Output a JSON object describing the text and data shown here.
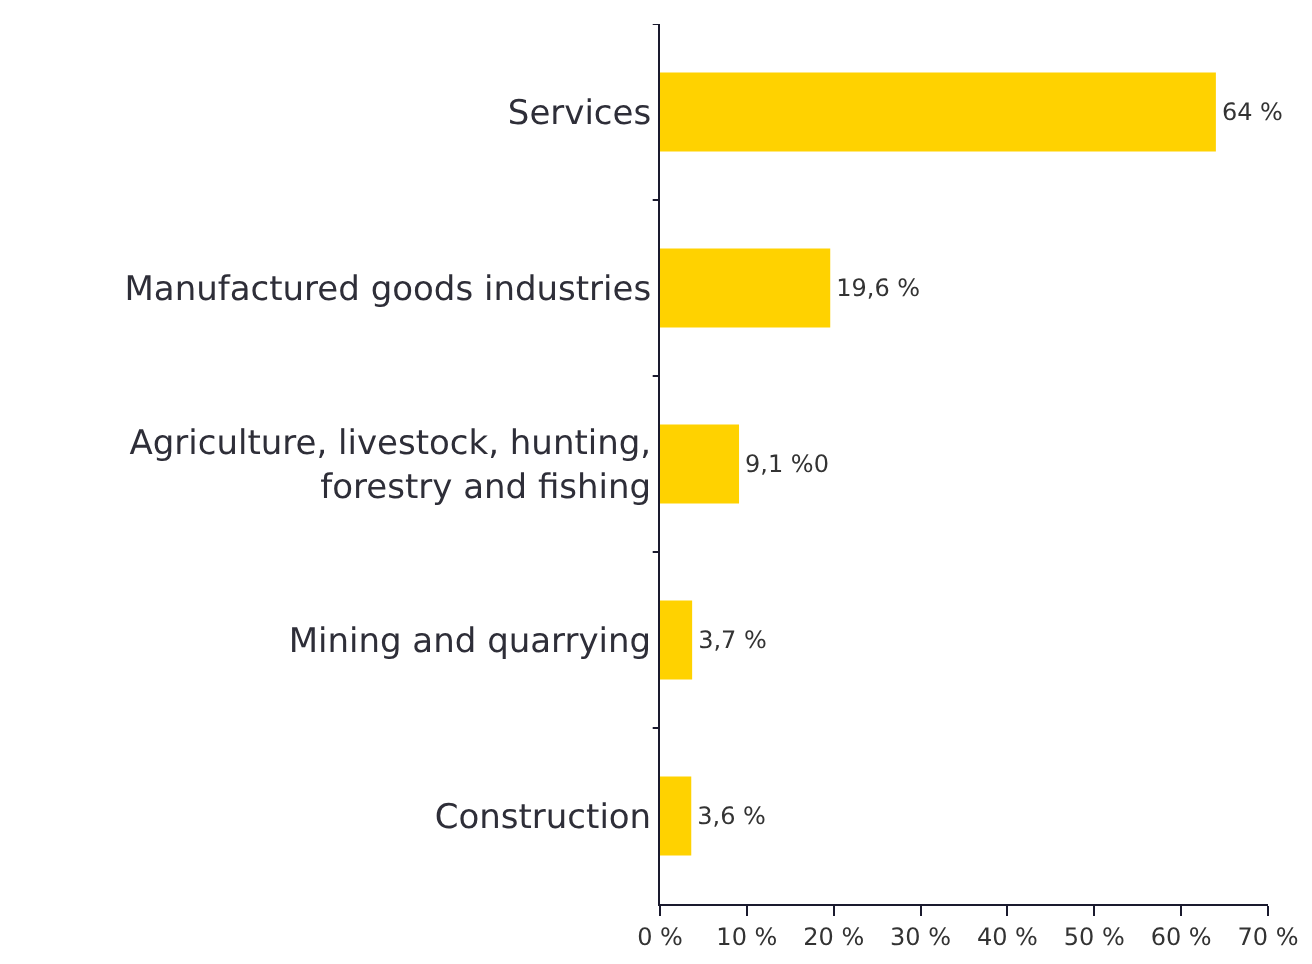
{
  "chart_data": {
    "type": "bar",
    "orientation": "horizontal",
    "categories": [
      "Services",
      "Manufactured goods industries",
      "Agriculture, livestock, hunting,\nforestry and fishing",
      "Mining and quarrying",
      "Construction"
    ],
    "values": [
      64,
      19.6,
      9.1,
      3.7,
      3.6
    ],
    "value_labels": [
      "64 %",
      "19,6 %",
      "9,1 %0",
      "3,7 %",
      "3,6 %"
    ],
    "color": "#ffd200",
    "xlim": [
      0,
      70
    ],
    "xticks": [
      {
        "value": 0,
        "label": "0 %"
      },
      {
        "value": 10,
        "label": "10 %"
      },
      {
        "value": 20,
        "label": "20 %"
      },
      {
        "value": 30,
        "label": "30 %"
      },
      {
        "value": 40,
        "label": "40 %"
      },
      {
        "value": 50,
        "label": "50 %"
      },
      {
        "value": 60,
        "label": "60 %"
      },
      {
        "value": 70,
        "label": "70 %"
      }
    ],
    "grid": false,
    "legend": false
  }
}
